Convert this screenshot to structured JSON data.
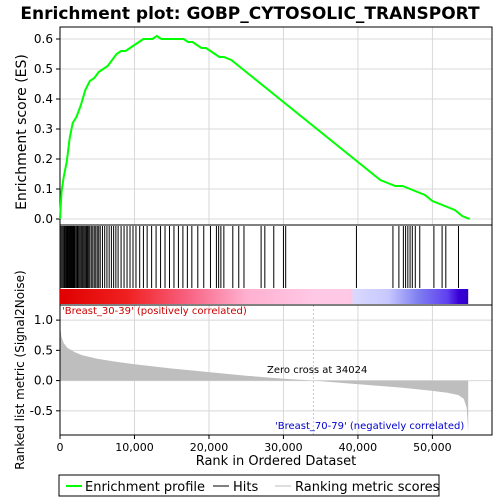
{
  "chart_data": [
    {
      "panel": "enrichment",
      "type": "line",
      "title": "Enrichment plot: GOBP_CYTOSOLIC_TRANSPORT",
      "ylabel": "Enrichment score (ES)",
      "ylim": [
        -0.02,
        0.64
      ],
      "yticks": [
        0.0,
        0.1,
        0.2,
        0.3,
        0.4,
        0.5,
        0.6
      ],
      "ytick_labels": [
        "0.0",
        "0.1",
        "0.2",
        "0.3",
        "0.4",
        "0.5",
        "0.6"
      ],
      "grid": true,
      "series": [
        {
          "name": "Enrichment profile",
          "color": "#00ff00",
          "x": [
            0,
            200,
            500,
            900,
            1300,
            1700,
            2200,
            2800,
            3400,
            4000,
            4600,
            5200,
            5800,
            6400,
            7000,
            7600,
            8200,
            8800,
            9400,
            10000,
            10600,
            11200,
            11800,
            12400,
            13000,
            13600,
            14200,
            14800,
            15400,
            16000,
            16600,
            17200,
            17800,
            18400,
            19000,
            19600,
            20200,
            20800,
            21400,
            22000,
            23000,
            24000,
            25000,
            26000,
            27000,
            28000,
            29000,
            30000,
            31000,
            32000,
            33000,
            34000,
            35000,
            36000,
            37000,
            38000,
            39000,
            40000,
            41000,
            42000,
            43000,
            44000,
            45000,
            46000,
            47000,
            48000,
            49000,
            50000,
            51000,
            52000,
            53000,
            54000,
            55000
          ],
          "y": [
            0.0,
            0.09,
            0.14,
            0.19,
            0.27,
            0.32,
            0.34,
            0.38,
            0.43,
            0.46,
            0.47,
            0.49,
            0.5,
            0.51,
            0.53,
            0.55,
            0.56,
            0.56,
            0.57,
            0.58,
            0.59,
            0.6,
            0.6,
            0.6,
            0.61,
            0.6,
            0.6,
            0.6,
            0.6,
            0.6,
            0.6,
            0.59,
            0.59,
            0.58,
            0.57,
            0.57,
            0.56,
            0.55,
            0.54,
            0.54,
            0.53,
            0.51,
            0.49,
            0.47,
            0.45,
            0.43,
            0.41,
            0.39,
            0.37,
            0.35,
            0.33,
            0.31,
            0.29,
            0.27,
            0.25,
            0.23,
            0.21,
            0.19,
            0.17,
            0.15,
            0.13,
            0.12,
            0.11,
            0.11,
            0.1,
            0.09,
            0.08,
            0.06,
            0.05,
            0.04,
            0.03,
            0.01,
            0.0
          ]
        }
      ]
    },
    {
      "panel": "hits",
      "type": "scatter",
      "series": [
        {
          "name": "Hits",
          "color": "#000000",
          "x": [
            150,
            300,
            450,
            600,
            750,
            850,
            950,
            1050,
            1150,
            1250,
            1350,
            1450,
            1550,
            1650,
            1750,
            1850,
            1950,
            2050,
            2200,
            2350,
            2500,
            2650,
            2800,
            2950,
            3100,
            3250,
            3400,
            3550,
            3700,
            3850,
            4000,
            4200,
            4400,
            4600,
            4800,
            5000,
            5200,
            5400,
            5700,
            6000,
            6300,
            6600,
            6900,
            7200,
            7500,
            7800,
            8200,
            8600,
            9000,
            9400,
            9800,
            10200,
            10700,
            11200,
            11700,
            12300,
            12900,
            13500,
            14100,
            14700,
            15300,
            15900,
            16500,
            17100,
            17700,
            18500,
            19300,
            20200,
            21000,
            21300,
            21600,
            22000,
            23200,
            24000,
            24700,
            27000,
            27500,
            28700,
            30000,
            30300,
            39800,
            44700,
            45500,
            46100,
            46400,
            46700,
            47000,
            47300,
            47700,
            48300,
            50200,
            51300,
            51800,
            53500
          ]
        }
      ]
    },
    {
      "panel": "ranked-metric",
      "type": "area",
      "ylabel": "Ranked list metric (Signal2Noise)",
      "xlabel": "Rank in Ordered Dataset",
      "ylim": [
        -0.9,
        1.25
      ],
      "xlim": [
        0,
        58000
      ],
      "yticks": [
        -0.5,
        0.0,
        0.5,
        1.0
      ],
      "ytick_labels": [
        "-0.5",
        "0.0",
        "0.5",
        "1.0"
      ],
      "xticks": [
        0,
        10000,
        20000,
        30000,
        40000,
        50000
      ],
      "xtick_labels": [
        "0",
        "10,000",
        "20,000",
        "30,000",
        "40,000",
        "50,000"
      ],
      "grid": true,
      "series": [
        {
          "name": "Ranking metric scores",
          "color": "#bebebe",
          "x": [
            0,
            200,
            500,
            1000,
            2000,
            3000,
            5000,
            7500,
            10000,
            15000,
            20000,
            25000,
            30000,
            34024,
            38000,
            42000,
            46000,
            50000,
            52000,
            53500,
            54200,
            54600,
            54800
          ],
          "y": [
            0.9,
            0.72,
            0.62,
            0.54,
            0.47,
            0.42,
            0.36,
            0.31,
            0.27,
            0.2,
            0.14,
            0.08,
            0.03,
            0.0,
            -0.04,
            -0.08,
            -0.12,
            -0.17,
            -0.2,
            -0.24,
            -0.3,
            -0.45,
            -0.85
          ]
        }
      ],
      "annotations": {
        "zero_cross_label": "Zero cross at 34024",
        "zero_cross_x": 34024,
        "positive_label": "'Breast_30-39' (positively correlated)",
        "negative_label": "'Breast_70-79' (negatively correlated)"
      }
    }
  ],
  "legend": {
    "placement": "bottom",
    "items": [
      {
        "label": "Enrichment profile",
        "color": "#00ff00"
      },
      {
        "label": "Hits",
        "color": "#000000"
      },
      {
        "label": "Ranking metric scores",
        "color": "#bebebe"
      }
    ]
  },
  "colors": {
    "positive_dark": "#ff0000",
    "positive_light": "#ffc0cb",
    "negative_light": "#d0d0ff",
    "negative_dark": "#3a00d8",
    "positive_label": "#cc0000",
    "negative_label": "#0000cc",
    "grid": "#d8d8d8",
    "enrichment_line": "#00ff00"
  },
  "color_band": {
    "xmax": 54800,
    "stops": [
      {
        "x": 0,
        "color": "#e00000"
      },
      {
        "x": 9000,
        "color": "#f02020"
      },
      {
        "x": 17000,
        "color": "#f86080"
      },
      {
        "x": 25000,
        "color": "#ffb0d0"
      },
      {
        "x": 34024,
        "color": "#ffc8e4"
      },
      {
        "x": 39000,
        "color": "#ffc8e4"
      },
      {
        "x": 39500,
        "color": "#d8d8ff"
      },
      {
        "x": 44000,
        "color": "#c8c8ff"
      },
      {
        "x": 48000,
        "color": "#8080f0"
      },
      {
        "x": 52000,
        "color": "#6040f0"
      },
      {
        "x": 53500,
        "color": "#3a00d8"
      },
      {
        "x": 54800,
        "color": "#3000c8"
      }
    ]
  }
}
